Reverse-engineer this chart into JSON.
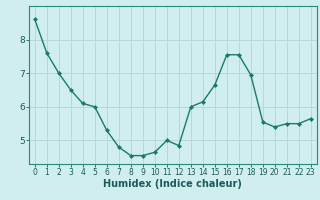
{
  "x": [
    0,
    1,
    2,
    3,
    4,
    5,
    6,
    7,
    8,
    9,
    10,
    11,
    12,
    13,
    14,
    15,
    16,
    17,
    18,
    19,
    20,
    21,
    22,
    23
  ],
  "y": [
    8.6,
    7.6,
    7.0,
    6.5,
    6.1,
    6.0,
    5.3,
    4.8,
    4.55,
    4.55,
    4.65,
    5.0,
    4.85,
    6.0,
    6.15,
    6.65,
    7.55,
    7.55,
    6.95,
    5.55,
    5.4,
    5.5,
    5.5,
    5.65
  ],
  "line_color": "#1a7a6a",
  "marker": "D",
  "markersize": 2.0,
  "linewidth": 1.0,
  "xlabel": "Humidex (Indice chaleur)",
  "xlabel_fontsize": 7,
  "bg_color": "#d0eeee",
  "grid_color": "#b8d8d8",
  "axis_color": "#2a8a7a",
  "tick_color": "#1a5a5a",
  "xlim": [
    -0.5,
    23.5
  ],
  "ylim": [
    4.3,
    9.0
  ],
  "yticks": [
    5,
    6,
    7,
    8
  ],
  "xticks": [
    0,
    1,
    2,
    3,
    4,
    5,
    6,
    7,
    8,
    9,
    10,
    11,
    12,
    13,
    14,
    15,
    16,
    17,
    18,
    19,
    20,
    21,
    22,
    23
  ],
  "tick_fontsize": 5.5,
  "ytick_fontsize": 6.5
}
